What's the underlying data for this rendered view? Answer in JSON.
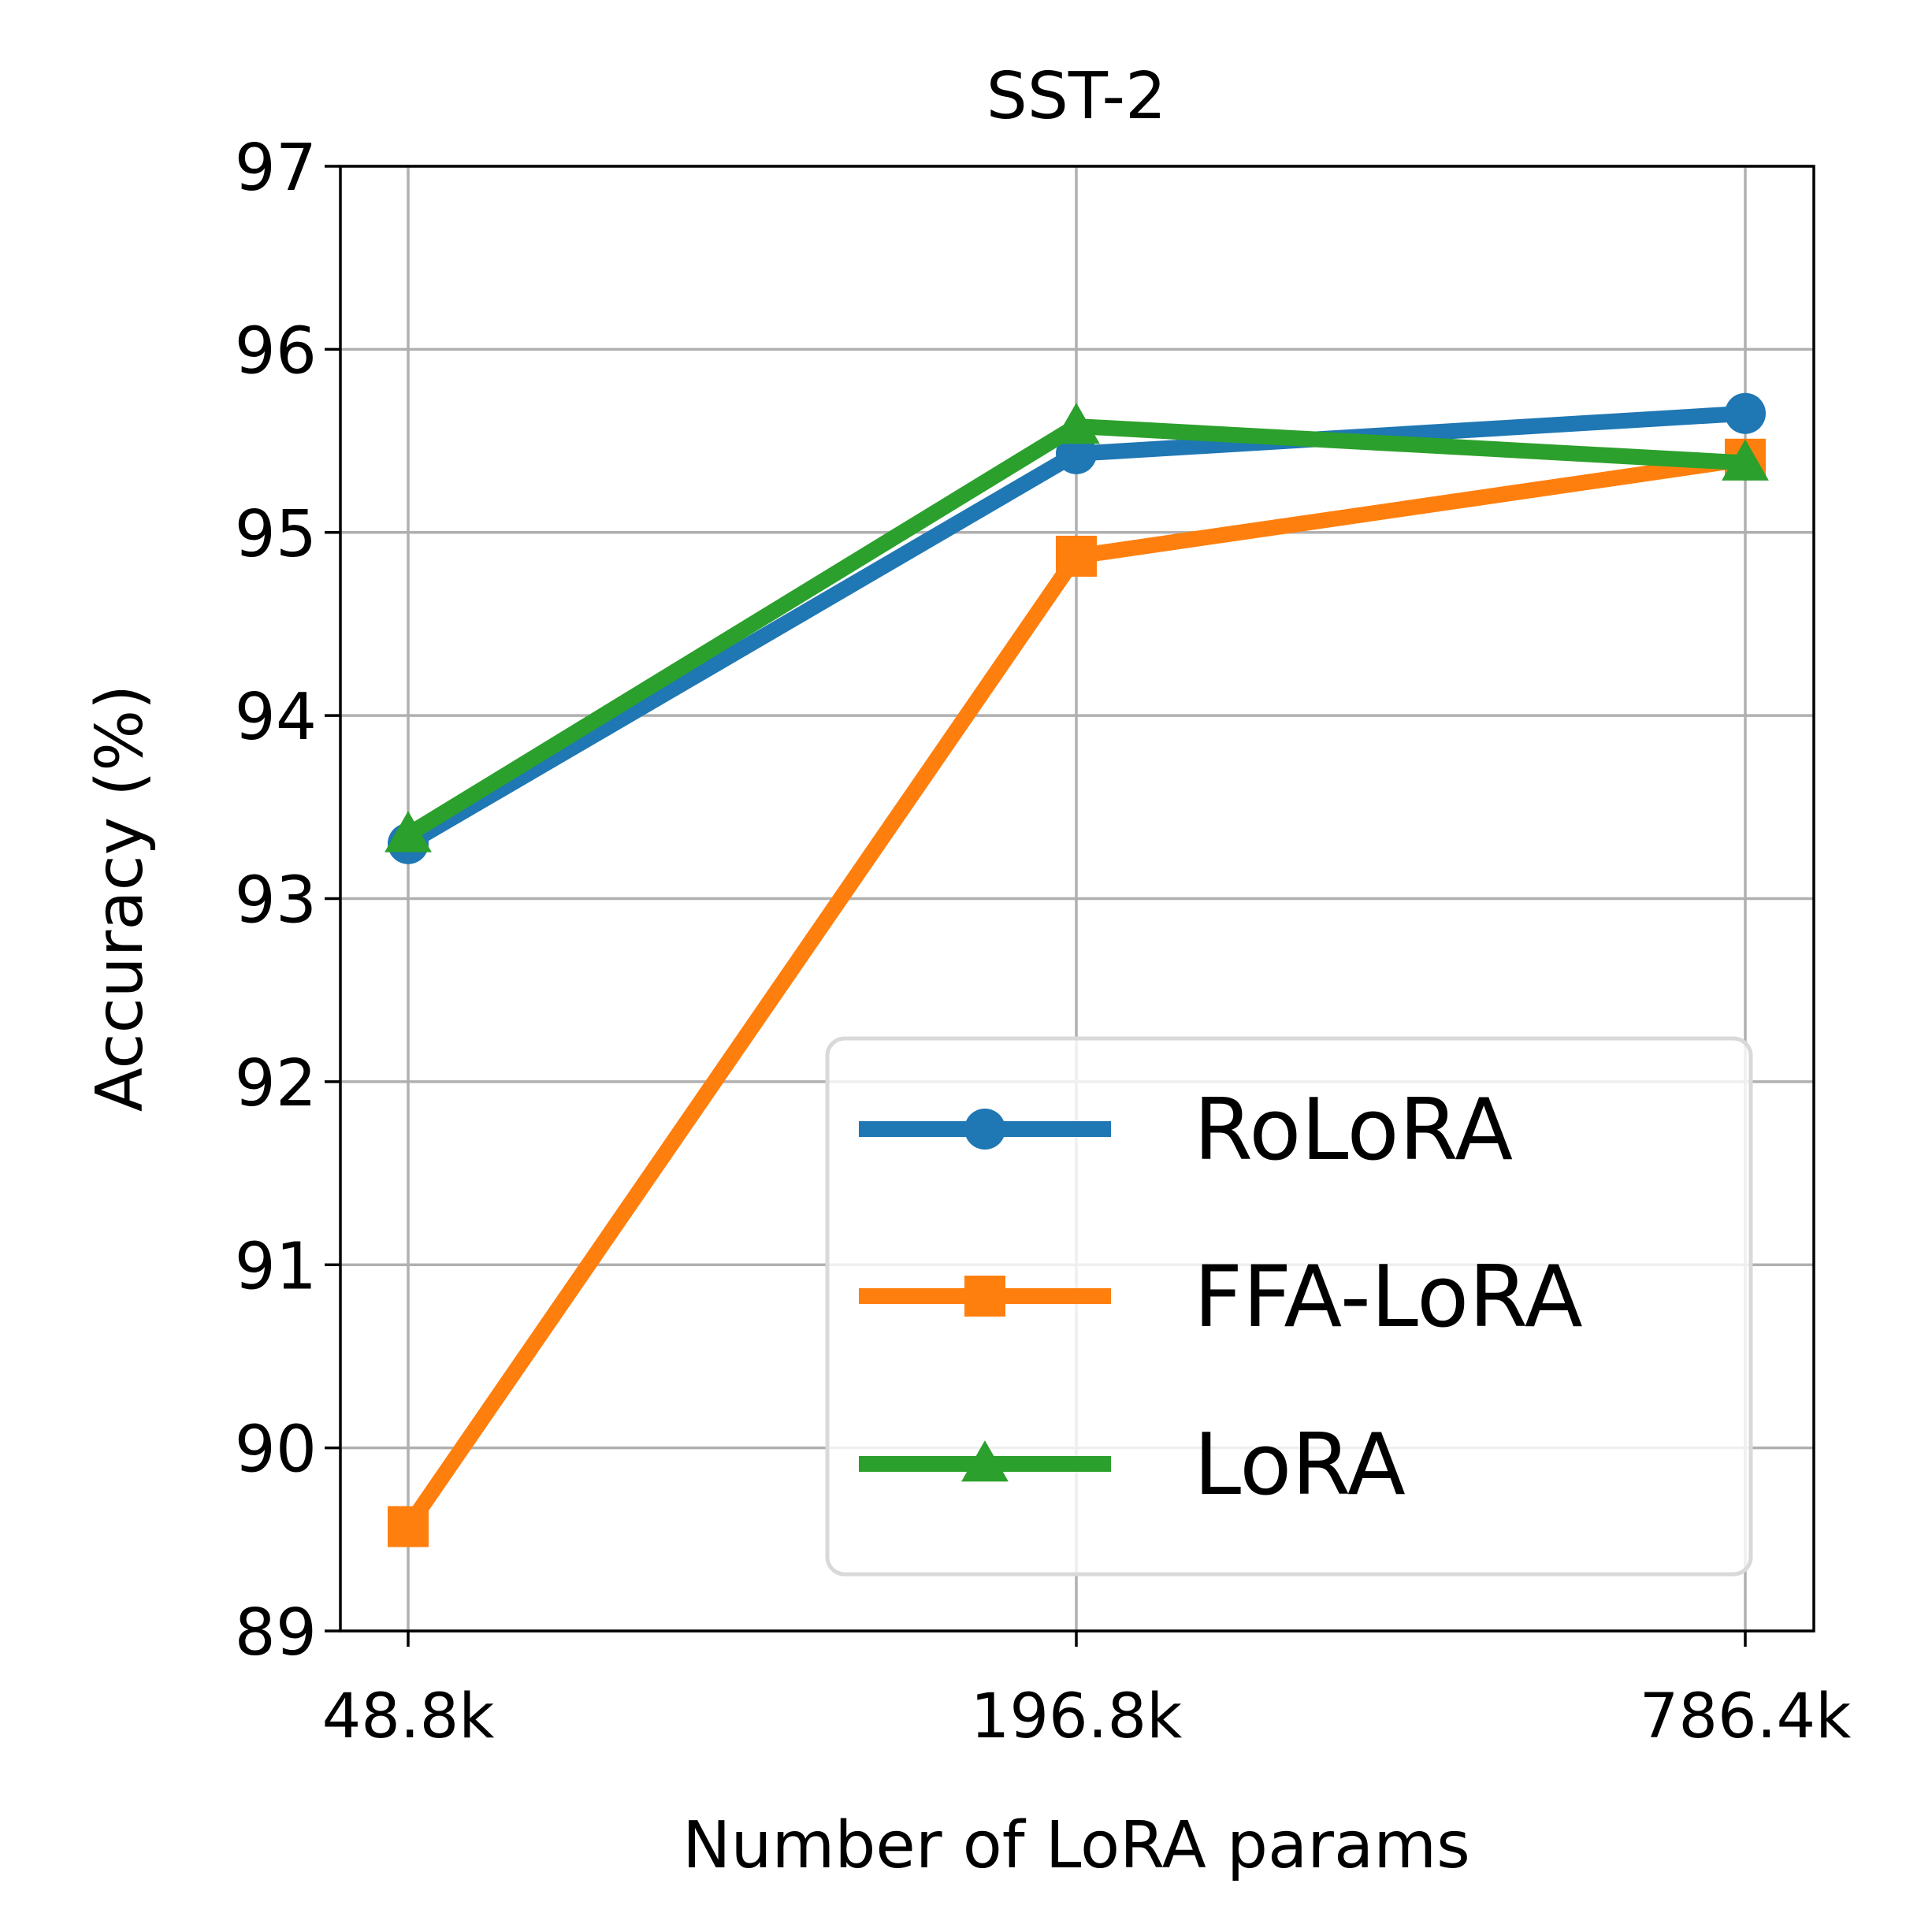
{
  "chart_data": {
    "type": "line",
    "title": "SST-2",
    "xlabel": "Number of LoRA params",
    "ylabel": "Accuracy (%)",
    "categories": [
      "48.8k",
      "196.8k",
      "786.4k"
    ],
    "ylim": [
      89,
      97
    ],
    "yticks": [
      "89",
      "90",
      "91",
      "92",
      "93",
      "94",
      "95",
      "96",
      "97"
    ],
    "grid": true,
    "legend_position": "lower-right",
    "series": [
      {
        "name": "RoLoRA",
        "values": [
          93.3,
          95.43,
          95.65
        ],
        "color": "#1f77b4",
        "marker": "circle"
      },
      {
        "name": "FFA-LoRA",
        "values": [
          89.57,
          94.87,
          95.4
        ],
        "color": "#ff7f0e",
        "marker": "square"
      },
      {
        "name": "LoRA",
        "values": [
          93.35,
          95.58,
          95.38
        ],
        "color": "#2ca02c",
        "marker": "triangle"
      }
    ]
  }
}
